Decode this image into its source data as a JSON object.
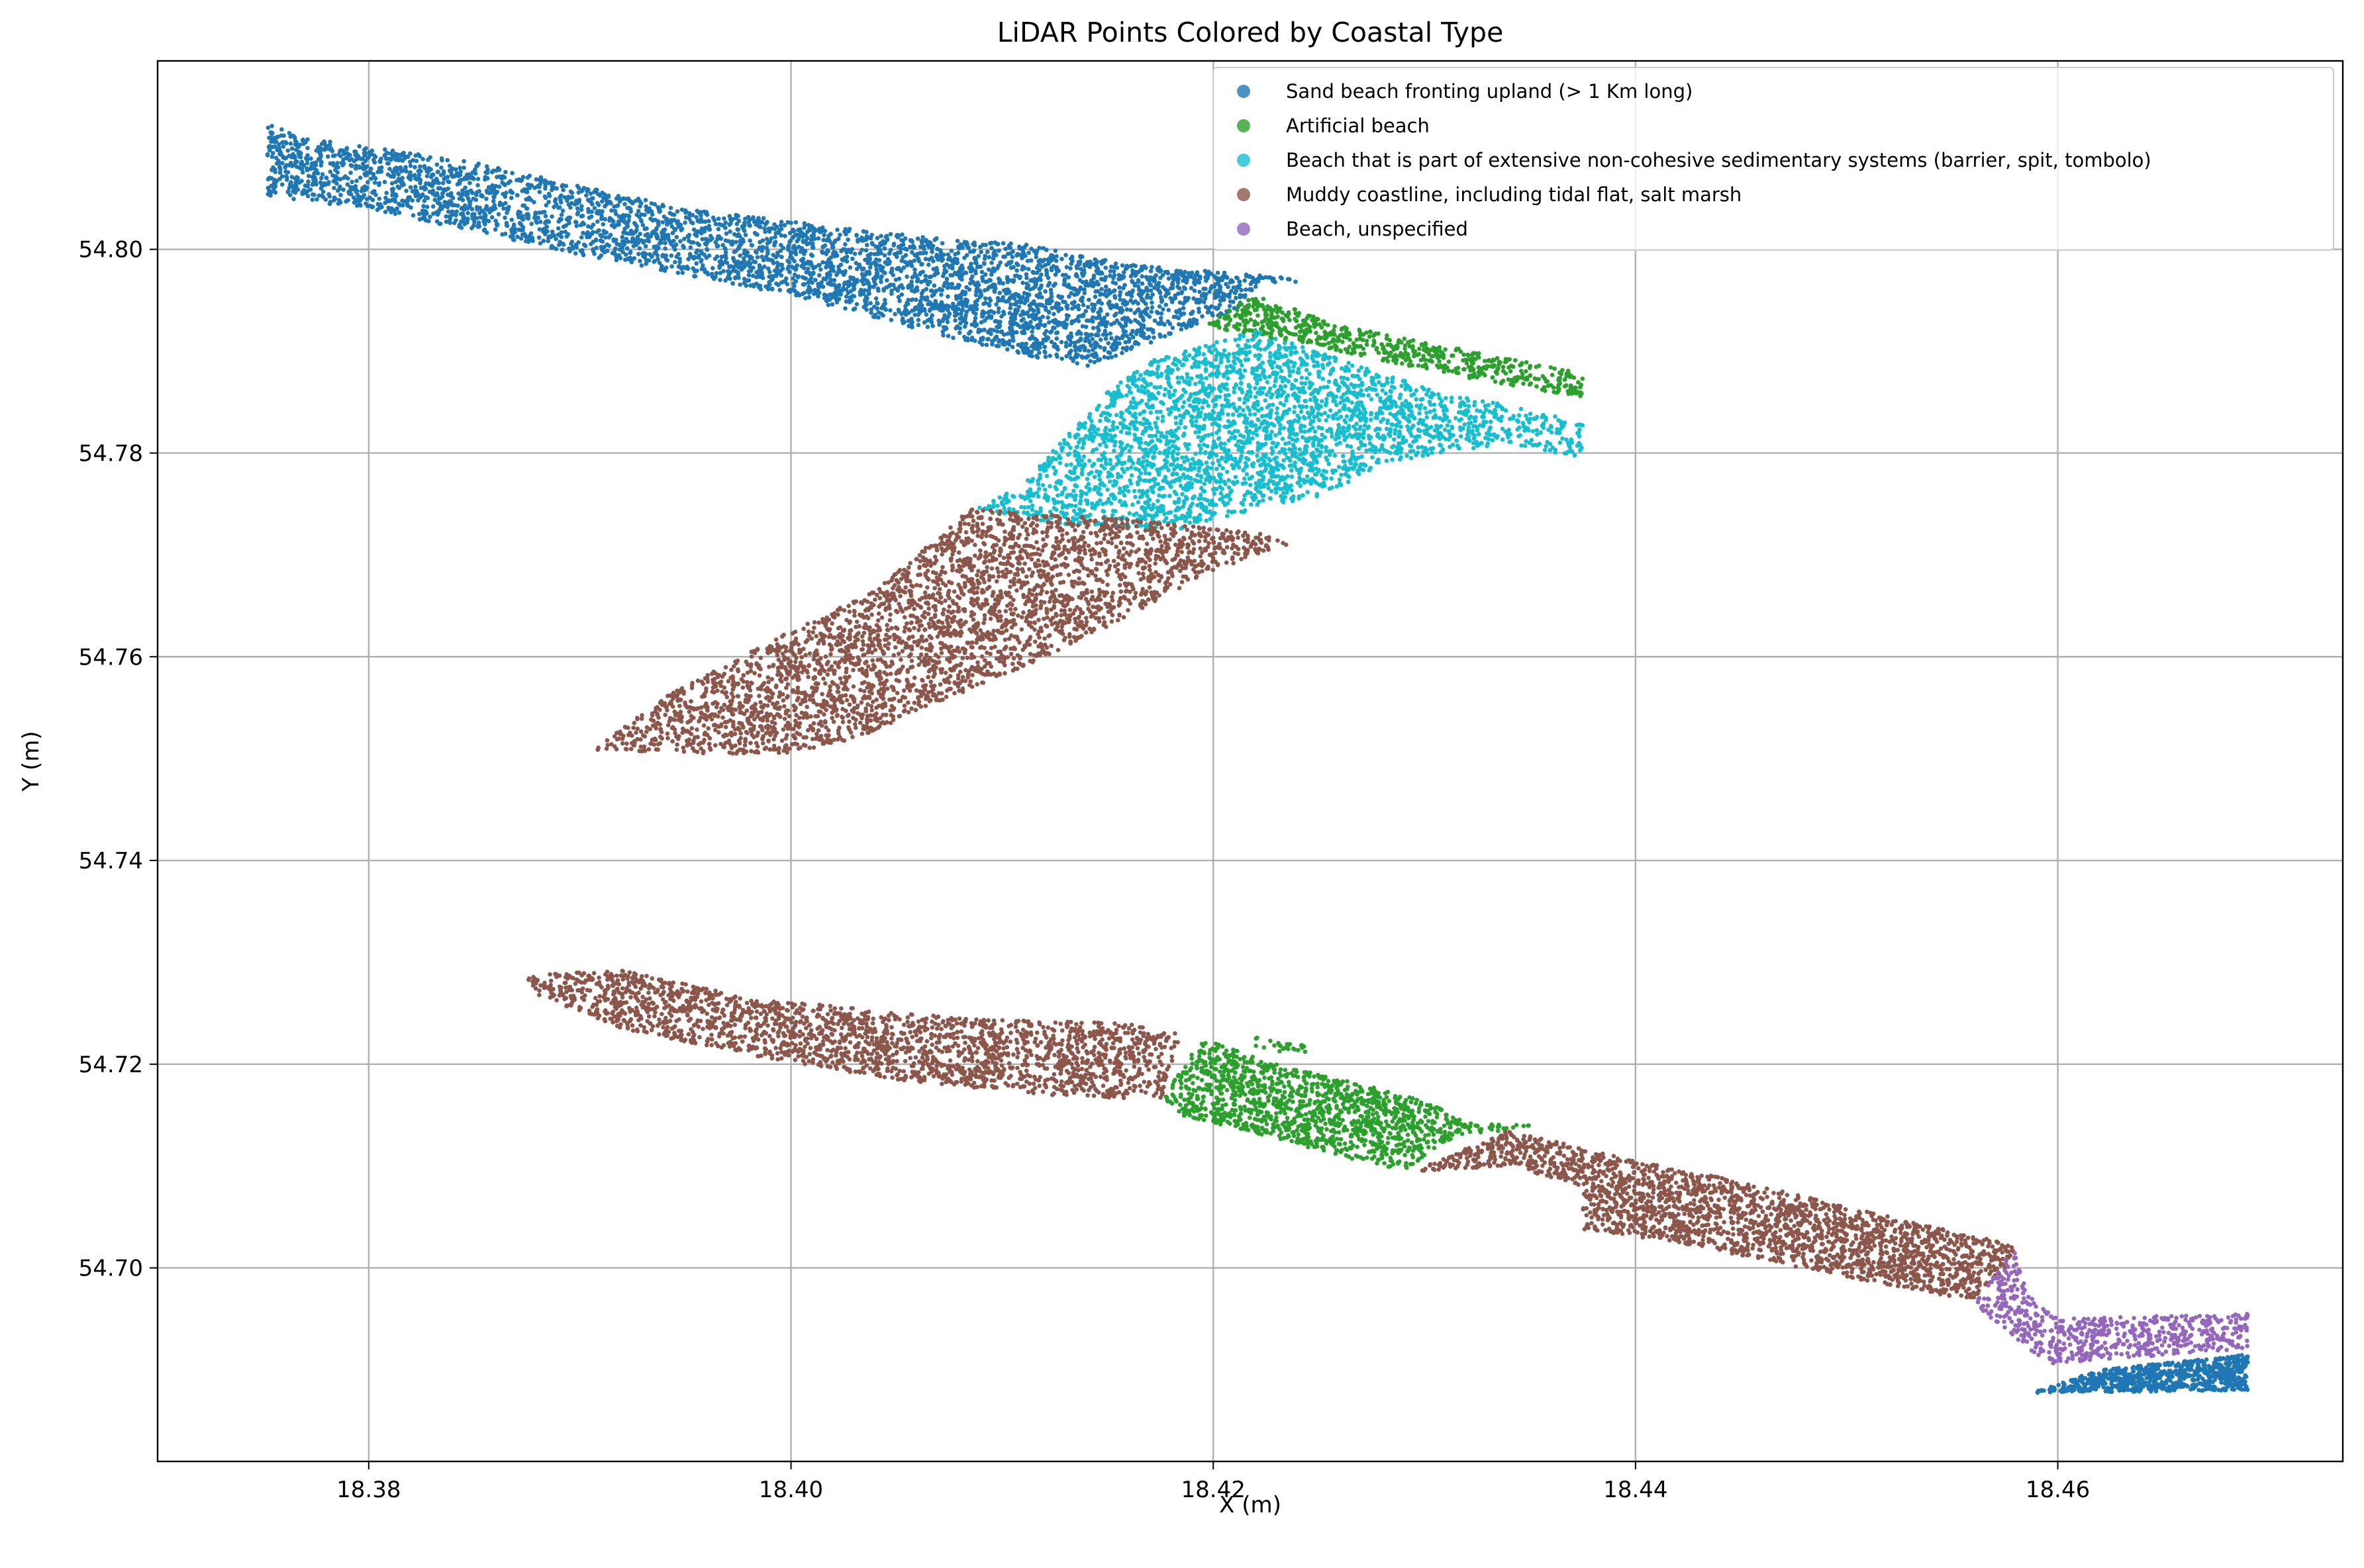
{
  "chart_data": {
    "type": "scatter",
    "title": "LiDAR Points Colored by Coastal Type",
    "xlabel": "X (m)",
    "ylabel": "Y (m)",
    "xlim": [
      18.37,
      18.4735
    ],
    "ylim": [
      54.681,
      54.8185
    ],
    "xticks": [
      {
        "value": 18.38,
        "label": "18.38"
      },
      {
        "value": 18.4,
        "label": "18.40"
      },
      {
        "value": 18.42,
        "label": "18.42"
      },
      {
        "value": 18.44,
        "label": "18.44"
      },
      {
        "value": 18.46,
        "label": "18.46"
      }
    ],
    "yticks": [
      {
        "value": 54.7,
        "label": "54.70"
      },
      {
        "value": 54.72,
        "label": "54.72"
      },
      {
        "value": 54.74,
        "label": "54.74"
      },
      {
        "value": 54.76,
        "label": "54.76"
      },
      {
        "value": 54.78,
        "label": "54.78"
      },
      {
        "value": 54.8,
        "label": "54.80"
      }
    ],
    "grid": true,
    "legend_position": "upper right",
    "series": [
      {
        "name": "Sand beach fronting upland (> 1 Km long)",
        "color": "#1f77b4",
        "regions": [
          {
            "polygon": [
              [
                18.3752,
                54.8123
              ],
              [
                18.377,
                54.811
              ],
              [
                18.385,
                54.8085
              ],
              [
                18.395,
                54.804
              ],
              [
                18.405,
                54.8015
              ],
              [
                18.411,
                54.8005
              ],
              [
                18.416,
                54.7985
              ],
              [
                18.4222,
                54.797
              ],
              [
                18.4215,
                54.7945
              ],
              [
                18.416,
                54.79
              ],
              [
                18.414,
                54.7885
              ],
              [
                18.41,
                54.79
              ],
              [
                18.4,
                54.7955
              ],
              [
                18.39,
                54.7995
              ],
              [
                18.38,
                54.804
              ],
              [
                18.3752,
                54.8052
              ]
            ],
            "count": 4200
          },
          {
            "polygon": [
              [
                18.416,
                54.7985
              ],
              [
                18.424,
                54.7972
              ],
              [
                18.424,
                54.7966
              ],
              [
                18.4175,
                54.7975
              ]
            ],
            "count": 60
          },
          {
            "polygon": [
              [
                18.4587,
                54.6877
              ],
              [
                18.462,
                54.69
              ],
              [
                18.469,
                54.6915
              ],
              [
                18.469,
                54.688
              ],
              [
                18.462,
                54.6878
              ]
            ],
            "count": 750
          }
        ]
      },
      {
        "name": "Artificial beach",
        "color": "#2ca02c",
        "regions": [
          {
            "polygon": [
              [
                18.4195,
                54.7925
              ],
              [
                18.422,
                54.7955
              ],
              [
                18.426,
                54.7925
              ],
              [
                18.431,
                54.7905
              ],
              [
                18.4375,
                54.7878
              ],
              [
                18.4375,
                54.7855
              ],
              [
                18.433,
                54.787
              ],
              [
                18.427,
                54.7895
              ],
              [
                18.422,
                54.7915
              ]
            ],
            "count": 650
          },
          {
            "polygon": [
              [
                18.4175,
                54.7165
              ],
              [
                18.4195,
                54.7225
              ],
              [
                18.423,
                54.72
              ],
              [
                18.426,
                54.7185
              ],
              [
                18.43,
                54.7165
              ],
              [
                18.432,
                54.7142
              ],
              [
                18.435,
                54.714
              ],
              [
                18.431,
                54.7125
              ],
              [
                18.429,
                54.7095
              ],
              [
                18.426,
                54.711
              ],
              [
                18.4215,
                54.7135
              ],
              [
                18.4185,
                54.715
              ]
            ],
            "count": 1350
          },
          {
            "polygon": [
              [
                18.422,
                54.7228
              ],
              [
                18.4245,
                54.7218
              ],
              [
                18.4245,
                54.721
              ],
              [
                18.422,
                54.7215
              ]
            ],
            "count": 25
          }
        ]
      },
      {
        "name": "Beach that is part of extensive non-cohesive sedimentary systems (barrier, spit, tombolo)",
        "color": "#17becf",
        "regions": [
          {
            "polygon": [
              [
                18.4085,
                54.7745
              ],
              [
                18.411,
                54.777
              ],
              [
                18.415,
                54.786
              ],
              [
                18.417,
                54.789
              ],
              [
                18.422,
                54.792
              ],
              [
                18.427,
                54.7885
              ],
              [
                18.431,
                54.786
              ],
              [
                18.4375,
                54.783
              ],
              [
                18.4375,
                54.7795
              ],
              [
                18.434,
                54.781
              ],
              [
                18.428,
                54.779
              ],
              [
                18.4255,
                54.776
              ],
              [
                18.422,
                54.7745
              ],
              [
                18.4185,
                54.7725
              ],
              [
                18.413,
                54.773
              ]
            ],
            "count": 3000
          }
        ]
      },
      {
        "name": "Muddy coastline, including tidal flat, salt marsh",
        "color": "#8c564b",
        "regions": [
          {
            "polygon": [
              [
                18.3905,
                54.7508
              ],
              [
                18.394,
                54.756
              ],
              [
                18.399,
                54.7615
              ],
              [
                18.404,
                54.7665
              ],
              [
                18.4085,
                54.7745
              ],
              [
                18.416,
                54.7735
              ],
              [
                18.4225,
                54.772
              ],
              [
                18.4235,
                54.771
              ],
              [
                18.4195,
                54.768
              ],
              [
                18.416,
                54.764
              ],
              [
                18.411,
                54.759
              ],
              [
                18.407,
                54.7555
              ],
              [
                18.404,
                54.7525
              ],
              [
                18.4,
                54.7505
              ],
              [
                18.395,
                54.7505
              ]
            ],
            "count": 3300
          },
          {
            "polygon": [
              [
                18.3868,
                54.7287
              ],
              [
                18.392,
                54.7292
              ],
              [
                18.398,
                54.7265
              ],
              [
                18.408,
                54.7245
              ],
              [
                18.416,
                54.724
              ],
              [
                18.4185,
                54.723
              ],
              [
                18.4175,
                54.7165
              ],
              [
                18.412,
                54.717
              ],
              [
                18.405,
                54.7185
              ],
              [
                18.399,
                54.7205
              ],
              [
                18.392,
                54.7235
              ],
              [
                18.388,
                54.7268
              ]
            ],
            "count": 2200
          },
          {
            "polygon": [
              [
                18.4295,
                54.7095
              ],
              [
                18.434,
                54.7135
              ],
              [
                18.439,
                54.711
              ],
              [
                18.445,
                54.7085
              ],
              [
                18.451,
                54.7055
              ],
              [
                18.458,
                54.7022
              ],
              [
                18.4575,
                54.7
              ],
              [
                18.456,
                54.6968
              ],
              [
                18.449,
                54.6995
              ],
              [
                18.442,
                54.7025
              ],
              [
                18.4375,
                54.7038
              ],
              [
                18.4375,
                54.708
              ],
              [
                18.434,
                54.71
              ]
            ],
            "count": 2300
          }
        ]
      },
      {
        "name": "Beach, unspecified",
        "color": "#9467bd",
        "regions": [
          {
            "polygon": [
              [
                18.456,
                54.6965
              ],
              [
                18.458,
                54.7022
              ],
              [
                18.4585,
                54.6975
              ],
              [
                18.46,
                54.695
              ],
              [
                18.469,
                54.6955
              ],
              [
                18.469,
                54.692
              ],
              [
                18.462,
                54.691
              ],
              [
                18.4595,
                54.6905
              ],
              [
                18.4575,
                54.694
              ]
            ],
            "count": 650
          }
        ]
      }
    ]
  }
}
